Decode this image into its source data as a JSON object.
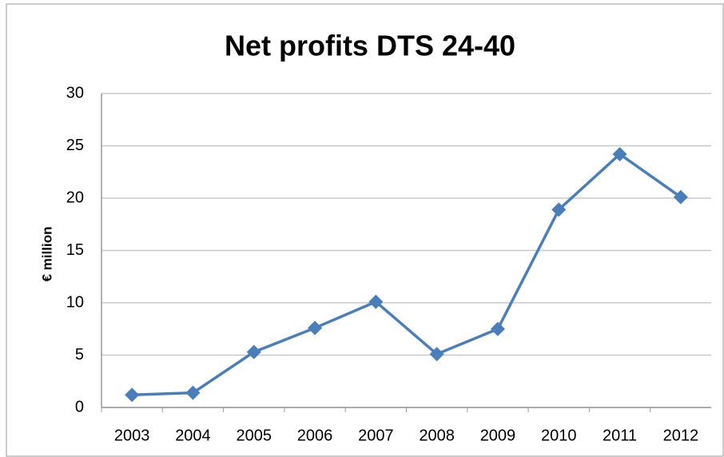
{
  "chart_data": {
    "type": "line",
    "title": "Net profits DTS 24-40",
    "y_label": "€ million",
    "categories": [
      "2003",
      "2004",
      "2005",
      "2006",
      "2007",
      "2008",
      "2009",
      "2010",
      "2011",
      "2012"
    ],
    "values": [
      1.2,
      1.4,
      5.3,
      7.6,
      10.1,
      5.1,
      7.5,
      18.9,
      24.2,
      20.1
    ],
    "color": "#4a7ebb",
    "ylim": [
      0,
      30
    ],
    "yticks": [
      0,
      5,
      10,
      15,
      20,
      25,
      30
    ],
    "grid": true
  }
}
